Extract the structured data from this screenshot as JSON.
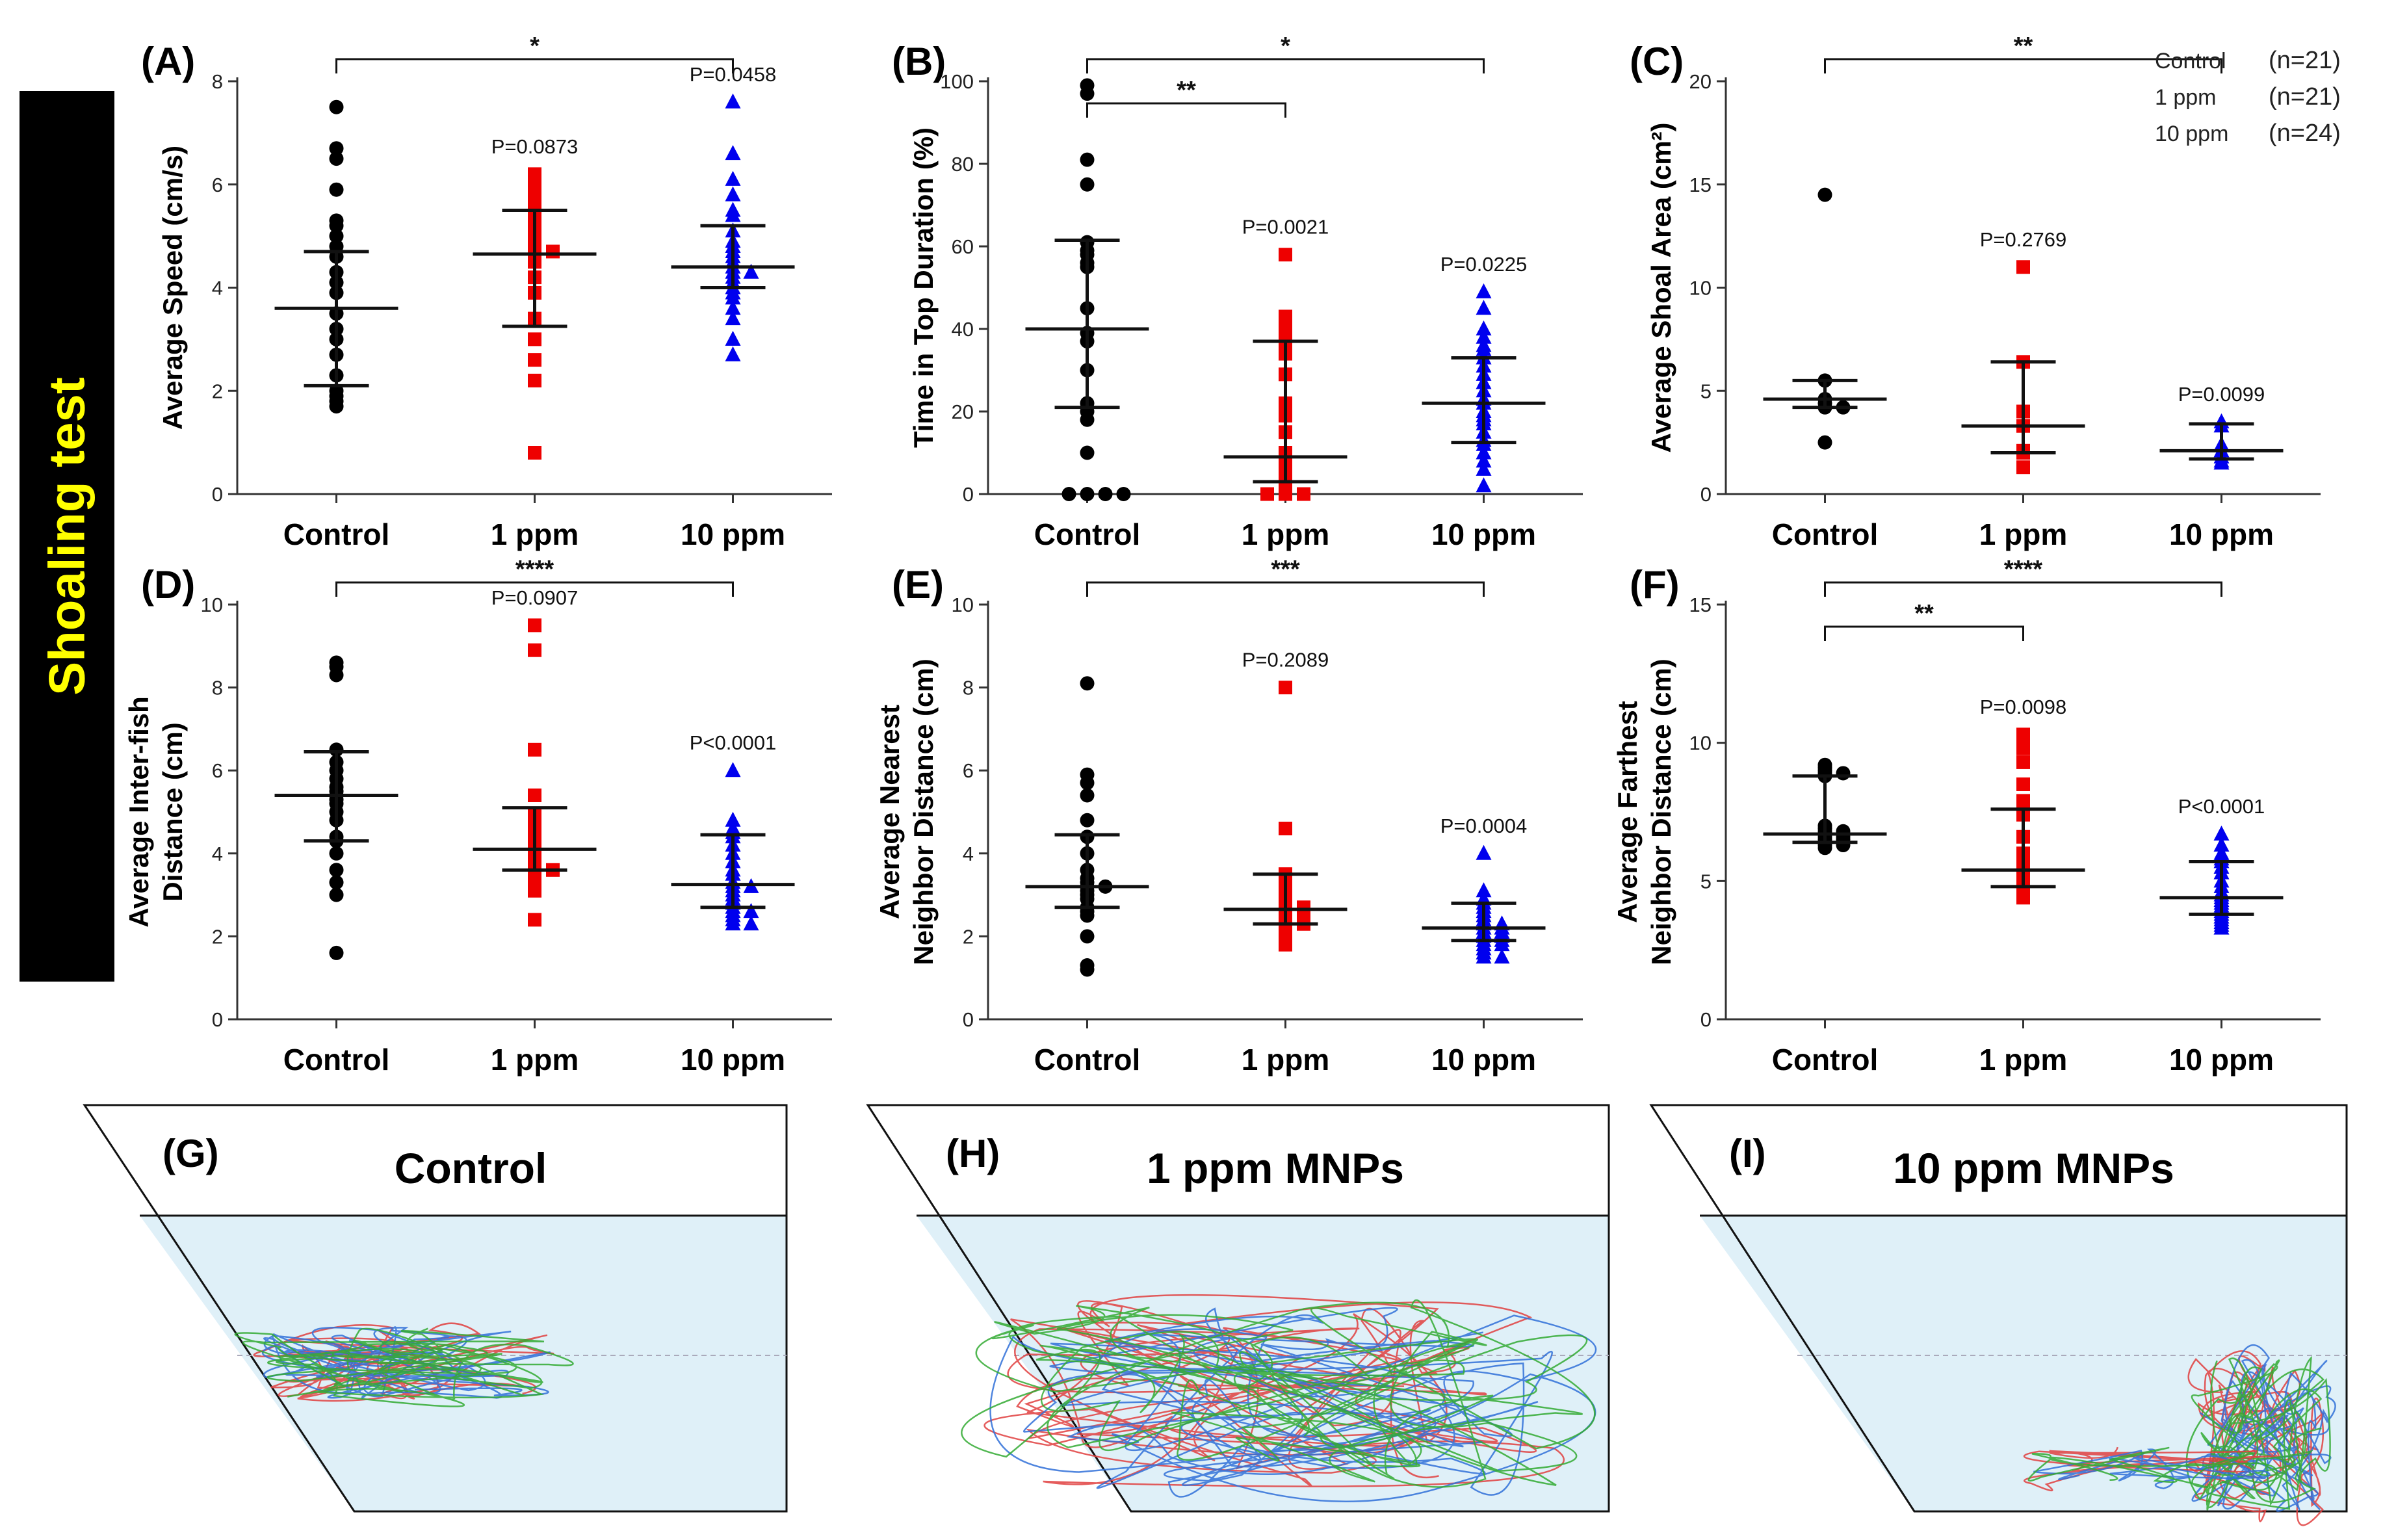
{
  "side_label": "Shoaling test",
  "colors": {
    "Control": "#000000",
    "1 ppm": "#ee0000",
    "10 ppm": "#0000ee",
    "water": "#dff0f8",
    "traj": [
      "#e04040",
      "#3070d8",
      "#33aa33"
    ]
  },
  "chart_data": [
    {
      "type": "scatter",
      "panel": "(A)",
      "ylabel": [
        "Average Speed (cm/s)"
      ],
      "categories": [
        "Control",
        "1 ppm",
        "10 ppm"
      ],
      "ylim": [
        0,
        8
      ],
      "yticks": [
        0,
        2,
        4,
        6,
        8
      ],
      "series": [
        {
          "name": "Control",
          "marker": "circle",
          "median": 3.6,
          "q1": 2.1,
          "q3": 4.7,
          "values": [
            7.5,
            6.7,
            6.5,
            5.9,
            5.3,
            5.2,
            5.0,
            4.8,
            4.6,
            4.3,
            4.1,
            3.9,
            3.5,
            3.2,
            3.0,
            2.7,
            2.3,
            2.0,
            1.9,
            1.8,
            1.7
          ]
        },
        {
          "name": "1 ppm",
          "marker": "square",
          "median": 4.65,
          "q1": 3.25,
          "q3": 5.5,
          "values": [
            6.2,
            6.1,
            5.9,
            5.8,
            5.6,
            5.5,
            5.3,
            5.1,
            5.0,
            4.8,
            4.7,
            4.7,
            4.6,
            4.5,
            4.2,
            3.9,
            3.4,
            3.0,
            2.6,
            2.2,
            0.8
          ]
        },
        {
          "name": "10 ppm",
          "marker": "triangle",
          "median": 4.4,
          "q1": 4.0,
          "q3": 5.2,
          "values": [
            7.6,
            6.6,
            6.1,
            5.8,
            5.5,
            5.4,
            5.1,
            4.9,
            4.8,
            4.7,
            4.6,
            4.5,
            4.4,
            4.3,
            4.3,
            4.2,
            4.1,
            4.0,
            3.9,
            3.8,
            3.6,
            3.4,
            3.0,
            2.7
          ]
        }
      ],
      "pvalues": [
        "",
        "P=0.0873",
        "P=0.0458"
      ],
      "brackets": [
        {
          "from": 0,
          "to": 2,
          "label": "*"
        }
      ]
    },
    {
      "type": "scatter",
      "panel": "(B)",
      "ylabel": [
        "Time in Top Duration (%)"
      ],
      "categories": [
        "Control",
        "1 ppm",
        "10 ppm"
      ],
      "ylim": [
        0,
        100
      ],
      "yticks": [
        0,
        20,
        40,
        60,
        80,
        100
      ],
      "series": [
        {
          "name": "Control",
          "marker": "circle",
          "median": 40,
          "q1": 21,
          "q3": 61.5,
          "values": [
            99,
            97,
            81,
            75,
            61,
            59,
            58,
            56,
            55,
            45,
            39,
            37,
            30,
            22,
            20,
            18,
            10,
            0,
            0,
            0,
            0
          ]
        },
        {
          "name": "1 ppm",
          "marker": "square",
          "median": 9,
          "q1": 3,
          "q3": 37,
          "values": [
            58,
            43,
            41,
            39,
            37,
            34,
            29,
            22,
            19,
            15,
            10,
            9,
            7,
            5,
            4,
            3,
            2,
            1,
            0,
            0,
            0
          ]
        },
        {
          "name": "10 ppm",
          "marker": "triangle",
          "median": 22,
          "q1": 12.5,
          "q3": 33,
          "values": [
            49,
            45,
            40,
            38,
            36,
            35,
            33,
            31,
            29,
            27,
            25,
            23,
            22,
            20,
            19,
            18,
            17,
            15,
            13,
            12,
            10,
            8,
            6,
            2
          ]
        }
      ],
      "pvalues": [
        "",
        "P=0.0021",
        "P=0.0225"
      ],
      "brackets": [
        {
          "from": 0,
          "to": 1,
          "label": "**"
        },
        {
          "from": 0,
          "to": 2,
          "label": "*"
        }
      ]
    },
    {
      "type": "scatter",
      "panel": "(C)",
      "ylabel": [
        "Average Shoal Area (cm²)"
      ],
      "categories": [
        "Control",
        "1 ppm",
        "10 ppm"
      ],
      "ylim": [
        0,
        20
      ],
      "yticks": [
        0,
        5,
        10,
        15,
        20
      ],
      "series": [
        {
          "name": "Control",
          "marker": "circle",
          "median": 4.6,
          "q1": 4.2,
          "q3": 5.5,
          "values": [
            14.5,
            5.5,
            4.6,
            4.4,
            4.2,
            4.2,
            2.5
          ]
        },
        {
          "name": "1 ppm",
          "marker": "square",
          "median": 3.3,
          "q1": 2.0,
          "q3": 6.4,
          "values": [
            11.0,
            6.4,
            4.0,
            3.3,
            2.1,
            2.0,
            1.3
          ]
        },
        {
          "name": "10 ppm",
          "marker": "triangle",
          "median": 2.1,
          "q1": 1.7,
          "q3": 3.4,
          "values": [
            3.5,
            3.3,
            2.4,
            2.1,
            1.8,
            1.6,
            1.5
          ]
        }
      ],
      "pvalues": [
        "",
        "P=0.2769",
        "P=0.0099"
      ],
      "brackets": [
        {
          "from": 0,
          "to": 2,
          "label": "**"
        }
      ],
      "legend": [
        {
          "name": "Control",
          "n": "(n=21)"
        },
        {
          "name": "1 ppm",
          "n": "(n=21)"
        },
        {
          "name": "10 ppm",
          "n": "(n=24)"
        }
      ]
    },
    {
      "type": "scatter",
      "panel": "(D)",
      "ylabel": [
        "Average Inter-fish",
        "Distance (cm)"
      ],
      "categories": [
        "Control",
        "1 ppm",
        "10 ppm"
      ],
      "ylim": [
        0,
        10
      ],
      "yticks": [
        0,
        2,
        4,
        6,
        8,
        10
      ],
      "series": [
        {
          "name": "Control",
          "marker": "circle",
          "median": 5.4,
          "q1": 4.3,
          "q3": 6.45,
          "values": [
            8.6,
            8.5,
            8.3,
            6.5,
            6.2,
            6.0,
            5.8,
            5.6,
            5.5,
            5.4,
            5.3,
            5.2,
            5.0,
            4.8,
            4.4,
            4.3,
            4.0,
            3.6,
            3.3,
            3.0,
            1.6
          ]
        },
        {
          "name": "1 ppm",
          "marker": "square",
          "median": 4.1,
          "q1": 3.6,
          "q3": 5.1,
          "values": [
            9.5,
            8.9,
            6.5,
            5.4,
            4.9,
            4.8,
            4.6,
            4.4,
            4.2,
            4.1,
            4.0,
            3.9,
            3.8,
            3.7,
            3.6,
            3.6,
            3.5,
            3.4,
            3.3,
            3.1,
            2.4
          ]
        },
        {
          "name": "10 ppm",
          "marker": "triangle",
          "median": 3.25,
          "q1": 2.7,
          "q3": 4.45,
          "values": [
            6.0,
            4.8,
            4.6,
            4.5,
            4.4,
            4.2,
            4.0,
            3.8,
            3.6,
            3.5,
            3.3,
            3.2,
            3.2,
            3.1,
            3.0,
            2.9,
            2.8,
            2.7,
            2.6,
            2.6,
            2.5,
            2.4,
            2.3,
            2.3
          ]
        }
      ],
      "pvalues": [
        "",
        "P=0.0907",
        "P<0.0001"
      ],
      "brackets": [
        {
          "from": 0,
          "to": 2,
          "label": "****"
        }
      ]
    },
    {
      "type": "scatter",
      "panel": "(E)",
      "ylabel": [
        "Average Nearest",
        "Neighbor Distance (cm)"
      ],
      "categories": [
        "Control",
        "1 ppm",
        "10 ppm"
      ],
      "ylim": [
        0,
        10
      ],
      "yticks": [
        0,
        2,
        4,
        6,
        8,
        10
      ],
      "series": [
        {
          "name": "Control",
          "marker": "circle",
          "median": 3.2,
          "q1": 2.7,
          "q3": 4.45,
          "values": [
            8.1,
            5.9,
            5.7,
            5.4,
            4.8,
            4.4,
            4.0,
            3.6,
            3.4,
            3.3,
            3.2,
            3.2,
            3.1,
            3.0,
            2.9,
            2.7,
            2.6,
            2.5,
            2.0,
            1.3,
            1.2
          ]
        },
        {
          "name": "1 ppm",
          "marker": "square",
          "median": 2.65,
          "q1": 2.3,
          "q3": 3.5,
          "values": [
            8.0,
            4.6,
            3.5,
            3.4,
            3.2,
            3.0,
            2.9,
            2.8,
            2.7,
            2.7,
            2.6,
            2.6,
            2.5,
            2.4,
            2.3,
            2.3,
            2.2,
            2.1,
            2.0,
            1.9,
            1.8
          ]
        },
        {
          "name": "10 ppm",
          "marker": "triangle",
          "median": 2.2,
          "q1": 1.9,
          "q3": 2.8,
          "values": [
            4.0,
            3.1,
            2.9,
            2.8,
            2.7,
            2.6,
            2.5,
            2.4,
            2.3,
            2.3,
            2.2,
            2.2,
            2.1,
            2.1,
            2.0,
            2.0,
            1.9,
            1.9,
            1.8,
            1.8,
            1.7,
            1.6,
            1.5,
            1.5
          ]
        }
      ],
      "pvalues": [
        "",
        "P=0.2089",
        "P=0.0004"
      ],
      "brackets": [
        {
          "from": 0,
          "to": 2,
          "label": "***"
        }
      ]
    },
    {
      "type": "scatter",
      "panel": "(F)",
      "ylabel": [
        "Average Farthest",
        "Neighbor Distance (cm)"
      ],
      "categories": [
        "Control",
        "1 ppm",
        "10 ppm"
      ],
      "ylim": [
        0,
        15
      ],
      "yticks": [
        0,
        5,
        10,
        15
      ],
      "series": [
        {
          "name": "Control",
          "marker": "circle",
          "median": 6.7,
          "q1": 6.4,
          "q3": 8.8,
          "values": [
            9.2,
            9.1,
            9.0,
            8.9,
            8.9,
            8.8,
            7.0,
            6.9,
            6.8,
            6.8,
            6.7,
            6.7,
            6.6,
            6.6,
            6.5,
            6.5,
            6.4,
            6.4,
            6.3,
            6.3,
            6.2
          ]
        },
        {
          "name": "1 ppm",
          "marker": "square",
          "median": 5.4,
          "q1": 4.8,
          "q3": 7.6,
          "values": [
            10.3,
            10.2,
            9.8,
            9.3,
            8.5,
            7.9,
            7.6,
            7.4,
            6.6,
            6.0,
            5.6,
            5.4,
            5.3,
            5.2,
            5.1,
            5.0,
            4.9,
            4.8,
            4.7,
            4.6,
            4.4
          ]
        },
        {
          "name": "10 ppm",
          "marker": "triangle",
          "median": 4.4,
          "q1": 3.8,
          "q3": 5.7,
          "values": [
            6.7,
            6.3,
            6.0,
            5.9,
            5.8,
            5.7,
            5.5,
            5.3,
            5.0,
            4.8,
            4.6,
            4.5,
            4.4,
            4.3,
            4.2,
            4.1,
            4.0,
            3.9,
            3.8,
            3.7,
            3.6,
            3.5,
            3.4,
            3.3
          ]
        }
      ],
      "pvalues": [
        "",
        "P=0.0098",
        "P<0.0001"
      ],
      "brackets": [
        {
          "from": 0,
          "to": 1,
          "label": "**"
        },
        {
          "from": 0,
          "to": 2,
          "label": "****"
        }
      ]
    }
  ],
  "trajectories": [
    {
      "panel": "(G)",
      "title": "Control"
    },
    {
      "panel": "(H)",
      "title": "1 ppm MNPs"
    },
    {
      "panel": "(I)",
      "title": "10 ppm MNPs"
    }
  ]
}
